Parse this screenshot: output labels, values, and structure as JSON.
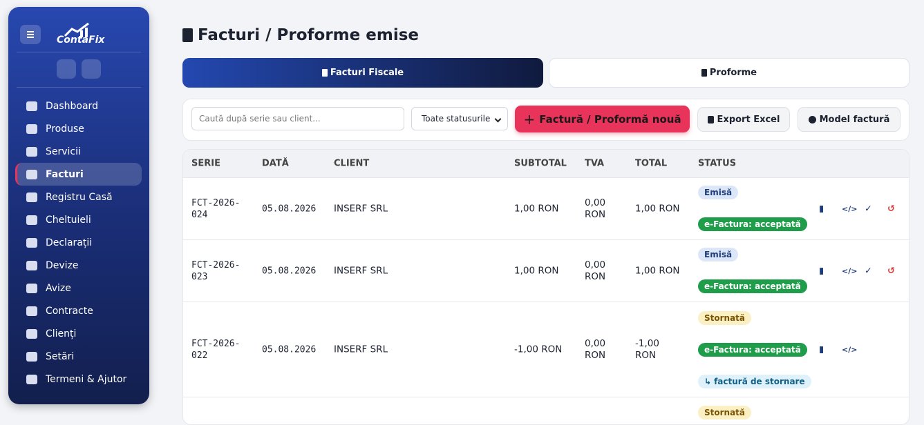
{
  "brand": "ContaFix",
  "nav": [
    "Dashboard",
    "Produse",
    "Servicii",
    "Facturi",
    "Registru Casă",
    "Cheltuieli",
    "Declarații",
    "Devize",
    "Avize",
    "Contracte",
    "Clienți",
    "Setări",
    "Termeni & Ajutor"
  ],
  "title": "Facturi / Proforme emise",
  "tabs": [
    "Facturi Fiscale",
    "Proforme"
  ],
  "toolbar": {
    "search_placeholder": "Caută după serie sau client...",
    "status_filter": "Toate statusurile",
    "new_button": "Factură / Proformă nouă",
    "export_button": "Export Excel",
    "model_button": "Model factură"
  },
  "table": {
    "headers": [
      "SERIE",
      "DATĂ",
      "CLIENT",
      "SUBTOTAL",
      "TVA",
      "TOTAL",
      "STATUS"
    ],
    "rows": [
      {
        "serie": "FCT-2026-024",
        "data": "05.08.2026",
        "client": "INSERF SRL",
        "subtotal": "1,00 RON",
        "tva": "0,00 RON",
        "total": "1,00 RON",
        "badges": [
          "Emisă",
          "e-Factura: acceptată"
        ]
      },
      {
        "serie": "FCT-2026-023",
        "data": "05.08.2026",
        "client": "INSERF SRL",
        "subtotal": "1,00 RON",
        "tva": "0,00 RON",
        "total": "1,00 RON",
        "badges": [
          "Emisă",
          "e-Factura: acceptată"
        ]
      },
      {
        "serie": "FCT-2026-022",
        "data": "05.08.2026",
        "client": "INSERF SRL",
        "subtotal": "-1,00 RON",
        "tva": "0,00 RON",
        "total": "-1,00 RON",
        "badges": [
          "Stornată",
          "e-Factura: acceptată",
          "factură de stornare"
        ]
      },
      {
        "badges": [
          "Stornată"
        ]
      }
    ]
  }
}
